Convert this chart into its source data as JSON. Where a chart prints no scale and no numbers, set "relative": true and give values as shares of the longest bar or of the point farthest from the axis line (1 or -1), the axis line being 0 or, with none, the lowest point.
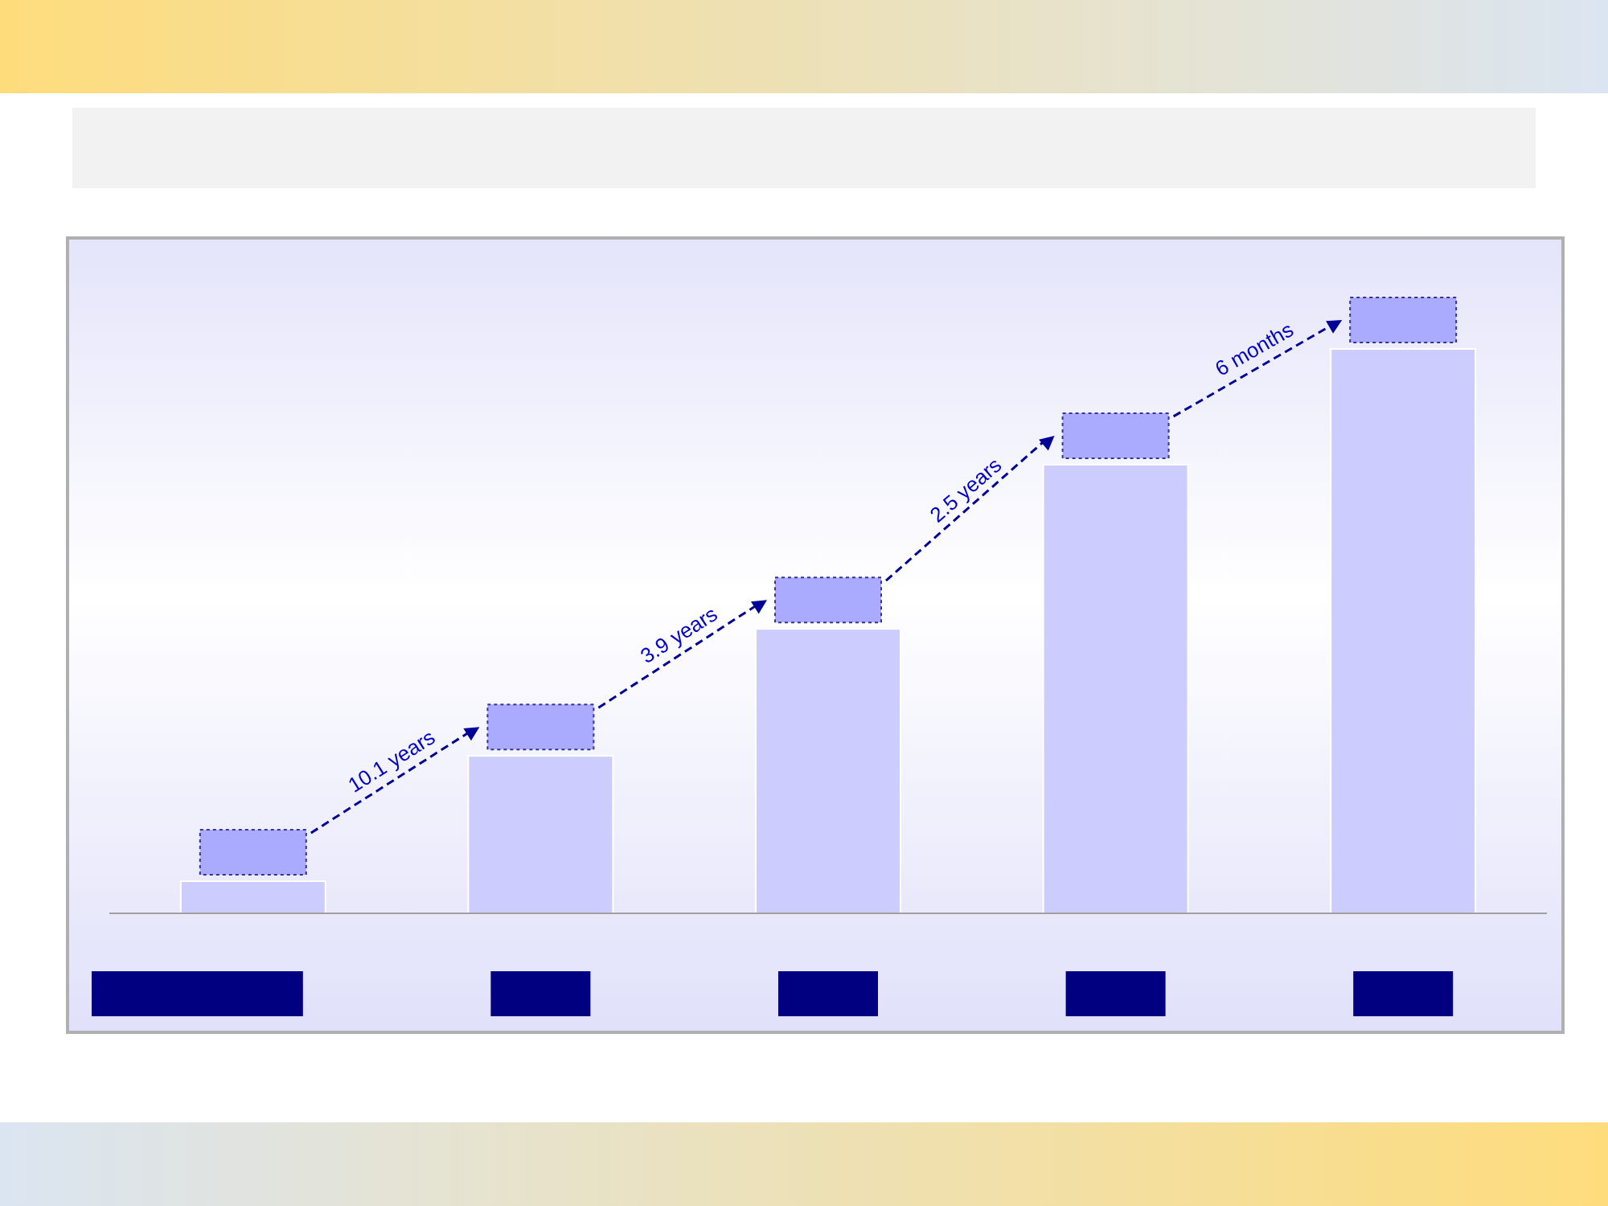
{
  "chart_data": {
    "type": "bar",
    "relative": true,
    "categories": [
      null,
      null,
      null,
      null,
      null
    ],
    "values": [
      0.057,
      0.279,
      0.504,
      0.795,
      1
    ],
    "color": "#ccccff",
    "annotations": [
      "10.1 years",
      "3.9 years",
      "2.5 years",
      "6 months"
    ]
  }
}
